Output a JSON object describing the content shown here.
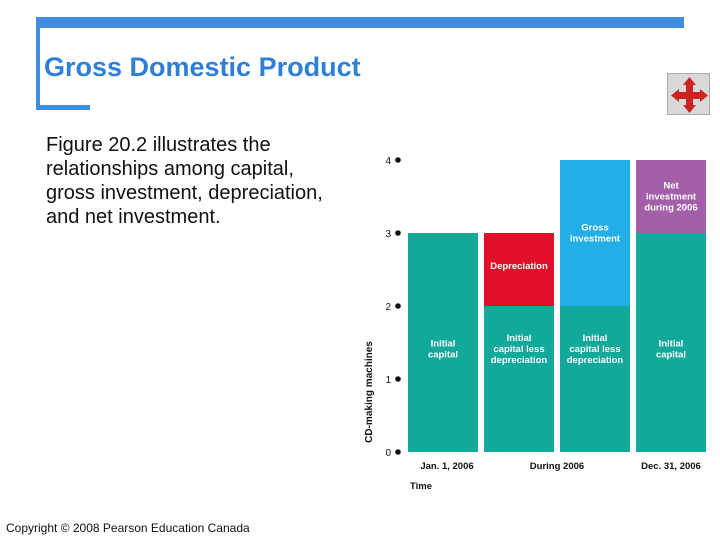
{
  "slide": {
    "title": "Gross Domestic Product",
    "body": "Figure 20.2 illustrates the relationships among capital, gross investment, depreciation, and net investment.",
    "copyright": "Copyright © 2008 Pearson Education Canada",
    "nav_icon": "four-way-arrow-icon"
  },
  "colors": {
    "accent": "#3d8de0",
    "title": "#2f7fd6",
    "capital": "#12a89a",
    "depreciation": "#e0102a",
    "gross_investment": "#22aee8",
    "net_investment": "#a35fa8",
    "nav_arrows": "#cc2222"
  },
  "chart_data": {
    "type": "bar",
    "stacked": true,
    "ylabel": "CD-making machines",
    "xlabel": "Time",
    "ylim": [
      0,
      4
    ],
    "yticks": [
      "0",
      "1",
      "2",
      "3",
      "4"
    ],
    "categories": [
      "Jan. 1, 2006",
      "",
      "",
      "Dec. 31, 2006"
    ],
    "category_group_label": "During 2006",
    "bars": [
      {
        "segments": [
          {
            "label": "Initial capital",
            "from": 0,
            "to": 3,
            "color": "#12a89a"
          }
        ]
      },
      {
        "segments": [
          {
            "label": "Initial capital less depreciation",
            "from": 0,
            "to": 2,
            "color": "#12a89a"
          },
          {
            "label": "Depreciation",
            "from": 2,
            "to": 3,
            "color": "#e0102a"
          }
        ]
      },
      {
        "segments": [
          {
            "label": "Initial capital less depreciation",
            "from": 0,
            "to": 2,
            "color": "#12a89a"
          },
          {
            "label": "Gross investment",
            "from": 2,
            "to": 4,
            "color": "#22aee8"
          }
        ]
      },
      {
        "segments": [
          {
            "label": "Initial capital",
            "from": 0,
            "to": 3,
            "color": "#12a89a"
          },
          {
            "label": "Net investment during 2006",
            "from": 3,
            "to": 4,
            "color": "#a35fa8"
          }
        ]
      }
    ]
  }
}
